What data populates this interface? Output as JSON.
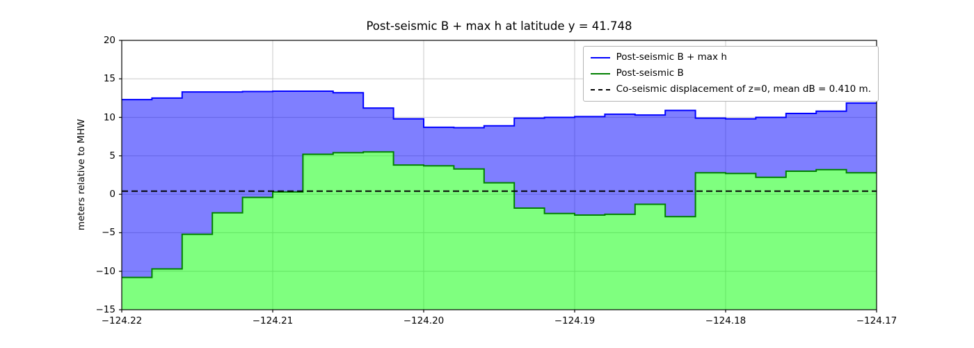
{
  "chart_data": {
    "type": "area",
    "title": "Post-seismic B + max h at latitude y = 41.748",
    "xlabel": "",
    "ylabel": "meters relative to MHW",
    "xlim": [
      -124.22,
      -124.17
    ],
    "ylim": [
      -15,
      20
    ],
    "grid": true,
    "grid_color": "#c9c9c9",
    "xticks": {
      "values": [
        -124.22,
        -124.21,
        -124.2,
        -124.19,
        -124.18,
        -124.17
      ],
      "labels": [
        "−124.22",
        "−124.21",
        "−124.20",
        "−124.19",
        "−124.18",
        "−124.17"
      ]
    },
    "yticks": {
      "values": [
        -15,
        -10,
        -5,
        0,
        5,
        10,
        15,
        20
      ],
      "labels": [
        "−15",
        "−10",
        "−5",
        "0",
        "5",
        "10",
        "15",
        "20"
      ]
    },
    "edges": [
      -124.22,
      -124.218,
      -124.216,
      -124.214,
      -124.212,
      -124.21,
      -124.208,
      -124.206,
      -124.204,
      -124.202,
      -124.2,
      -124.198,
      -124.196,
      -124.194,
      -124.192,
      -124.19,
      -124.188,
      -124.186,
      -124.184,
      -124.182,
      -124.18,
      -124.178,
      -124.176,
      -124.174,
      -124.172,
      -124.17
    ],
    "series": [
      {
        "name": "Post-seismic B + max h",
        "draw": "step-line-with-fill-to-other-series",
        "line_color": "#0000ff",
        "fill_color": "rgba(0,0,255,0.5)",
        "values": [
          12.3,
          12.5,
          13.3,
          13.3,
          13.35,
          13.4,
          13.4,
          13.2,
          11.2,
          9.8,
          8.7,
          8.65,
          8.9,
          9.9,
          10.0,
          10.1,
          10.4,
          10.3,
          10.9,
          9.9,
          9.8,
          10.0,
          10.5,
          10.8,
          11.85
        ]
      },
      {
        "name": "Post-seismic B",
        "draw": "step-line-with-fill-to-bottom",
        "line_color": "#008000",
        "fill_color": "rgba(0,255,0,0.5)",
        "values": [
          -10.8,
          -9.7,
          -5.2,
          -2.4,
          -0.4,
          0.3,
          5.2,
          5.4,
          5.5,
          3.8,
          3.7,
          3.3,
          1.5,
          -1.8,
          -2.5,
          -2.7,
          -2.6,
          -1.3,
          -2.9,
          2.8,
          2.7,
          2.2,
          3.0,
          3.2,
          2.8
        ]
      }
    ],
    "dashed_line": {
      "y": 0.41,
      "color": "#000000",
      "label": "Co-seismic displacement of z=0, mean dB = 0.410 m."
    },
    "legend": {
      "location": "upper right",
      "entries": [
        {
          "label": "Post-seismic B + max h",
          "color": "#0000ff",
          "style": "solid"
        },
        {
          "label": "Post-seismic B",
          "color": "#008000",
          "style": "solid"
        },
        {
          "label": "Co-seismic displacement of z=0, mean dB = 0.410 m.",
          "color": "#000000",
          "style": "dashed"
        }
      ]
    }
  }
}
